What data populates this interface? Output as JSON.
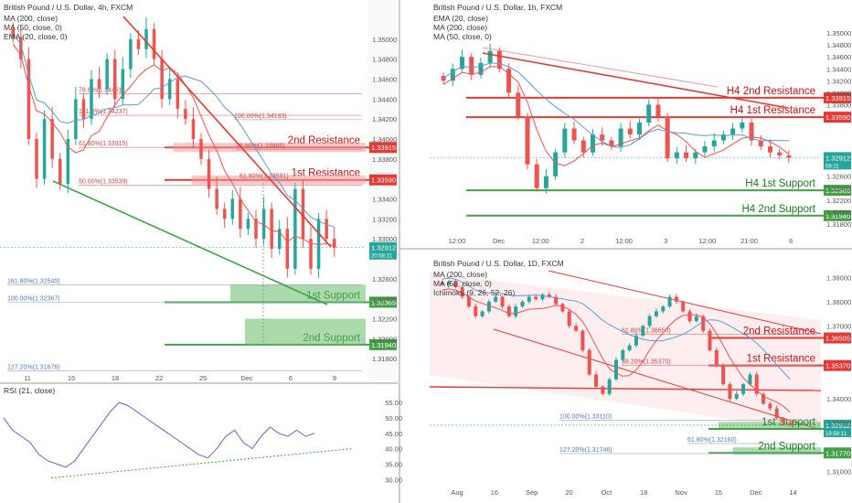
{
  "colors": {
    "up": "#26a69a",
    "down": "#ef5350",
    "res": "#e53935",
    "sup": "#43a047",
    "ma20": "#ef5350",
    "ma50": "#5c9bd6",
    "ma200": "#ef9a9a"
  },
  "chart_data": [
    {
      "type": "candlestick",
      "title": "British Pound / U.S. Dollar, 4h, FXCM",
      "indicators": [
        "MA (200, close)",
        "MA (50, close, 0)",
        "EMA (20, close, 0)"
      ],
      "y_ticks": [
        "1.35000",
        "1.34800",
        "1.34600",
        "1.34400",
        "1.34200",
        "1.34000",
        "1.33800",
        "1.33400",
        "1.33200",
        "1.33000",
        "1.32600",
        "1.32400",
        "1.32200",
        "1.32000",
        "1.31800"
      ],
      "x_ticks": [
        "11",
        "15",
        "18",
        "22",
        "25",
        "Dec",
        "6",
        "9"
      ],
      "ylim": [
        1.316,
        1.353
      ],
      "levels": [
        {
          "label": "2nd Resistance",
          "price": 1.33915,
          "tag": "1.33915",
          "kind": "res"
        },
        {
          "label": "1st Resistance",
          "price": 1.3359,
          "tag": "1.33590",
          "kind": "res"
        },
        {
          "label": "1st Support",
          "price": 1.32365,
          "tag": "1.32365",
          "kind": "sup"
        },
        {
          "label": "2nd Support",
          "price": 1.3194,
          "tag": "1.31940",
          "kind": "sup"
        }
      ],
      "current": {
        "tag": "1.32912",
        "timer": "20:58:11"
      },
      "fibs": [
        {
          "text": "161.8%(1.34237)",
          "price": 1.34237,
          "c": "red"
        },
        {
          "text": "78.6%(1.34451)",
          "price": 1.34451,
          "c": "red"
        },
        {
          "text": "100.00%(1.34193)",
          "price": 1.34193,
          "c": "red"
        },
        {
          "text": "61.80%(1.33915)",
          "price": 1.33915,
          "c": "red"
        },
        {
          "text": "78.60%(1.33895)",
          "price": 1.33895,
          "c": "red"
        },
        {
          "text": "50.00%(1.33539)",
          "price": 1.33539,
          "c": "red"
        },
        {
          "text": "61.80%(1.33591)",
          "price": 1.33591,
          "c": "red"
        },
        {
          "text": "161.80%(1.32540)",
          "price": 1.3254,
          "c": "blue"
        },
        {
          "text": "100.00%(1.32367)",
          "price": 1.32367,
          "c": "blue"
        },
        {
          "text": "127.20%(1.31676)",
          "price": 1.31676,
          "c": "blue"
        }
      ],
      "close_series": [
        1.3502,
        1.348,
        1.34,
        1.336,
        1.342,
        1.338,
        1.3355,
        1.34,
        1.344,
        1.342,
        1.346,
        1.345,
        1.348,
        1.344,
        1.347,
        1.35,
        1.349,
        1.351,
        1.348,
        1.344,
        1.346,
        1.343,
        1.342,
        1.34,
        1.338,
        1.335,
        1.333,
        1.332,
        1.334,
        1.331,
        1.332,
        1.33,
        1.333,
        1.329,
        1.331,
        1.327,
        1.335,
        1.33,
        1.327,
        1.332,
        1.33,
        1.3291
      ]
    },
    {
      "type": "line",
      "title": "RSI (21, close)",
      "y_ticks": [
        "55.00",
        "50.00",
        "45.00",
        "40.00",
        "35.00",
        "30.00"
      ],
      "ylim": [
        28,
        58
      ],
      "values": [
        50,
        46,
        44,
        42,
        38,
        36,
        35,
        34,
        36,
        40,
        44,
        48,
        52,
        55,
        54,
        52,
        50,
        48,
        46,
        44,
        42,
        40,
        38,
        37,
        40,
        44,
        46,
        42,
        40,
        44,
        47,
        45,
        44,
        46,
        44,
        45
      ]
    },
    {
      "type": "candlestick",
      "title": "British Pound / U.S. Dollar, 1h, FXCM",
      "indicators": [
        "EMA (20, close)",
        "MA (200, close)",
        "MA (50, close, 0)"
      ],
      "y_ticks": [
        "1.35000",
        "1.34800",
        "1.34600",
        "1.34400",
        "1.34200",
        "1.34000",
        "1.33800",
        "1.32600",
        "1.32400",
        "1.32200",
        "1.32000",
        "1.31800"
      ],
      "x_ticks": [
        "12:00",
        "Dec",
        "12:00",
        "2",
        "12:00",
        "3",
        "12:00",
        "21:00",
        "6"
      ],
      "ylim": [
        1.316,
        1.354
      ],
      "levels": [
        {
          "label": "H4 2nd Resistance",
          "price": 1.33915,
          "tag": "1.33915",
          "kind": "res"
        },
        {
          "label": "H4 1st Resistance",
          "price": 1.3359,
          "tag": "1.33590",
          "kind": "res"
        },
        {
          "label": "H4 1st Support",
          "price": 1.32365,
          "tag": "1.32365",
          "kind": "sup"
        },
        {
          "label": "H4 2nd Support",
          "price": 1.3194,
          "tag": "1.31940",
          "kind": "sup"
        }
      ],
      "current": {
        "tag": "1.32912",
        "timer": "58:11"
      },
      "close_series": [
        1.342,
        1.344,
        1.346,
        1.343,
        1.345,
        1.347,
        1.344,
        1.34,
        1.336,
        1.328,
        1.324,
        1.326,
        1.33,
        1.334,
        1.332,
        1.33,
        1.333,
        1.332,
        1.331,
        1.334,
        1.333,
        1.335,
        1.338,
        1.336,
        1.329,
        1.33,
        1.329,
        1.33,
        1.331,
        1.332,
        1.333,
        1.334,
        1.335,
        1.332,
        1.331,
        1.33,
        1.3295,
        1.3291
      ]
    },
    {
      "type": "candlestick",
      "title": "British Pound / U.S. Dollar, 1D, FXCM",
      "indicators": [
        "MA (200, close)",
        "MA (50, close, 0)",
        "Ichimoku (9, 26, 52, 26)"
      ],
      "y_ticks": [
        "1.39000",
        "1.38000",
        "1.37000",
        "1.34000",
        "1.33000",
        "1.31000"
      ],
      "x_ticks": [
        "Aug",
        "16",
        "Sep",
        "20",
        "Oct",
        "18",
        "Nov",
        "15",
        "Dec",
        "14"
      ],
      "ylim": [
        1.305,
        1.395
      ],
      "levels": [
        {
          "label": "2nd Resistance",
          "price": 1.36505,
          "tag": "1.36505",
          "kind": "res"
        },
        {
          "label": "1st Resistance",
          "price": 1.3537,
          "tag": "1.35370",
          "kind": "res"
        },
        {
          "label": "1st Support",
          "price": 1.3276,
          "tag": "1.32760",
          "kind": "sup"
        },
        {
          "label": "2nd Support",
          "price": 1.3177,
          "tag": "1.31770",
          "kind": "sup"
        }
      ],
      "current": {
        "tag": "1.32912",
        "timer": "19:58:11"
      },
      "fibs": [
        {
          "text": "61.80%(1.36650)",
          "price": 1.3665,
          "c": "red"
        },
        {
          "text": "38.20%(1.35370)",
          "price": 1.3537,
          "c": "red"
        },
        {
          "text": "100.00%(1.33110)",
          "price": 1.3311,
          "c": "blue"
        },
        {
          "text": "61.80%(1.32160)",
          "price": 1.3216,
          "c": "blue"
        },
        {
          "text": "127.20%(1.31746)",
          "price": 1.31746,
          "c": "blue"
        }
      ],
      "close_series": [
        1.387,
        1.388,
        1.386,
        1.382,
        1.378,
        1.374,
        1.376,
        1.38,
        1.382,
        1.378,
        1.374,
        1.378,
        1.38,
        1.382,
        1.381,
        1.383,
        1.382,
        1.379,
        1.376,
        1.37,
        1.368,
        1.36,
        1.35,
        1.345,
        1.342,
        1.348,
        1.356,
        1.36,
        1.362,
        1.366,
        1.37,
        1.374,
        1.376,
        1.378,
        1.382,
        1.38,
        1.376,
        1.372,
        1.374,
        1.368,
        1.36,
        1.354,
        1.346,
        1.34,
        1.342,
        1.346,
        1.35,
        1.342,
        1.338,
        1.336,
        1.332,
        1.33,
        1.3291
      ]
    }
  ]
}
